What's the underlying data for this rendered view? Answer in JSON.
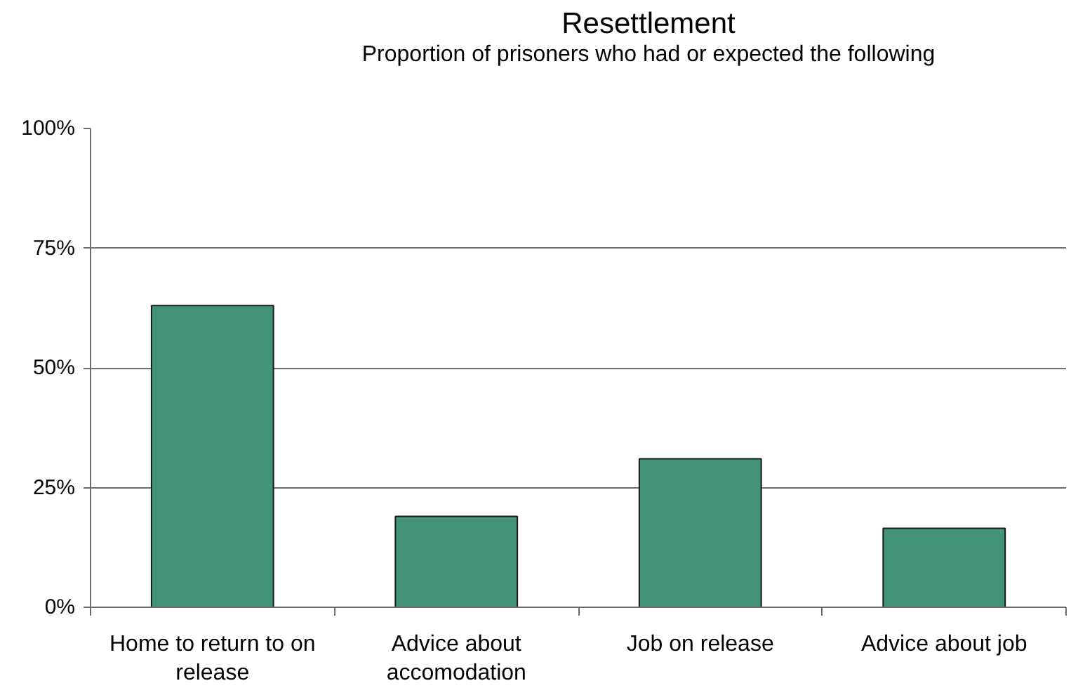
{
  "chart_data": {
    "type": "bar",
    "title": "Resettlement",
    "subtitle": "Proportion of prisoners who had or expected the following",
    "categories": [
      "Home to return to on release",
      "Advice about accomodation",
      "Job on release",
      "Advice about job"
    ],
    "values": [
      63,
      19,
      31,
      16.5
    ],
    "color": "#43937a",
    "ylim": [
      0,
      100
    ],
    "yticks": [
      {
        "value": 0,
        "label": "0%"
      },
      {
        "value": 25,
        "label": "25%"
      },
      {
        "value": 50,
        "label": "50%"
      },
      {
        "value": 75,
        "label": "75%"
      },
      {
        "value": 100,
        "label": "100%"
      }
    ],
    "grid": "y"
  }
}
